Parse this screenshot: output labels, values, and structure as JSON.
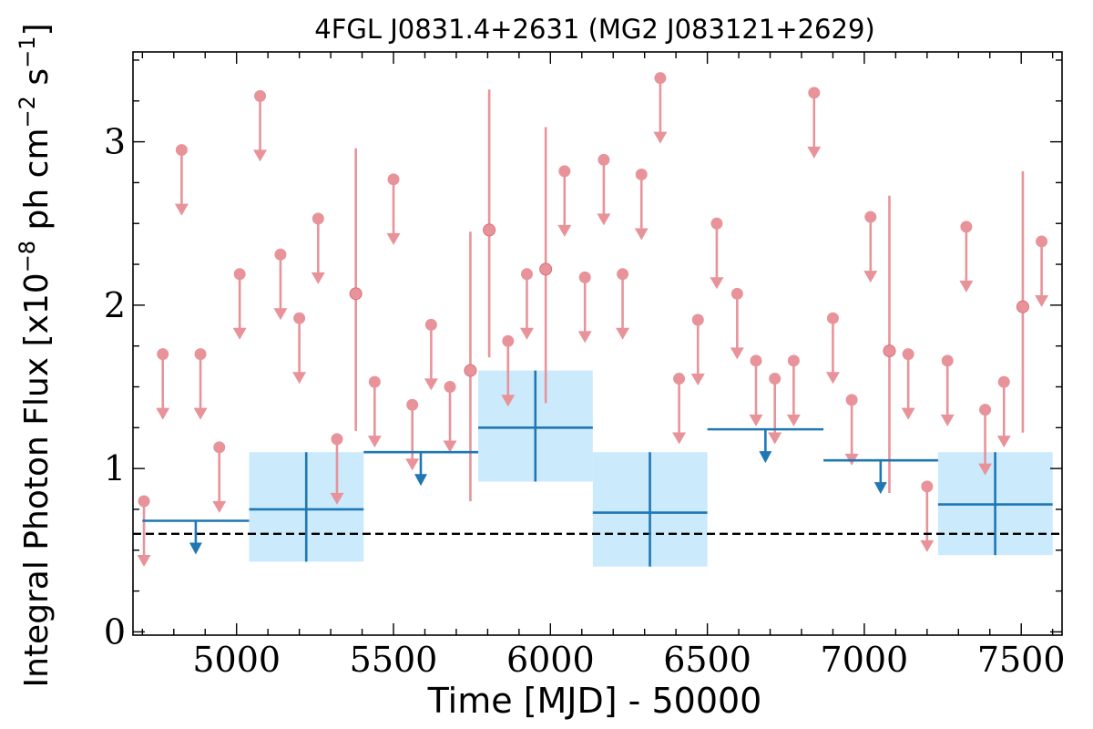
{
  "chart_data": {
    "type": "scatter",
    "title": "4FGL J0831.4+2631 (MG2 J083121+2629)",
    "xlabel": "Time [MJD] - 50000",
    "ylabel_prefix": "Integral Photon Flux [x10",
    "ylabel_exp1": "−8",
    "ylabel_mid": " ph cm",
    "ylabel_exp2": "−2",
    "ylabel_mid2": " s",
    "ylabel_exp3": "−1",
    "ylabel_suffix": "]",
    "xlim": [
      4670,
      7630
    ],
    "ylim": [
      -0.02,
      3.55
    ],
    "xticks": [
      5000,
      5500,
      6000,
      6500,
      7000,
      7500
    ],
    "yticks": [
      0,
      1,
      2,
      3
    ],
    "xtick_labels": [
      "5000",
      "5500",
      "6000",
      "6500",
      "7000",
      "7500"
    ],
    "ytick_labels": [
      "0",
      "1",
      "2",
      "3"
    ],
    "baseline": 0.6,
    "colors": {
      "short_bins": "#e8939a",
      "long_bins": "#1f77b4",
      "long_bin_fill": "#cbeafc",
      "baseline": "#000000"
    },
    "short_bins": [
      {
        "x": 4705,
        "y": 0.8,
        "ul": true
      },
      {
        "x": 4765,
        "y": 1.7,
        "ul": true
      },
      {
        "x": 4825,
        "y": 2.95,
        "ul": true
      },
      {
        "x": 4885,
        "y": 1.7,
        "ul": true
      },
      {
        "x": 4945,
        "y": 1.13,
        "ul": true
      },
      {
        "x": 5010,
        "y": 2.19,
        "ul": true
      },
      {
        "x": 5075,
        "y": 3.28,
        "ul": true
      },
      {
        "x": 5140,
        "y": 2.31,
        "ul": true
      },
      {
        "x": 5200,
        "y": 1.92,
        "ul": true
      },
      {
        "x": 5260,
        "y": 2.53,
        "ul": true
      },
      {
        "x": 5320,
        "y": 1.18,
        "ul": true
      },
      {
        "x": 5380,
        "y": 2.07,
        "ul": false,
        "lo": 1.23,
        "hi": 2.96
      },
      {
        "x": 5440,
        "y": 1.53,
        "ul": true
      },
      {
        "x": 5500,
        "y": 2.77,
        "ul": true
      },
      {
        "x": 5560,
        "y": 1.39,
        "ul": true
      },
      {
        "x": 5620,
        "y": 1.88,
        "ul": true
      },
      {
        "x": 5680,
        "y": 1.5,
        "ul": true
      },
      {
        "x": 5745,
        "y": 1.6,
        "ul": false,
        "lo": 0.8,
        "hi": 2.45
      },
      {
        "x": 5805,
        "y": 2.46,
        "ul": false,
        "lo": 1.68,
        "hi": 3.32
      },
      {
        "x": 5865,
        "y": 1.78,
        "ul": true
      },
      {
        "x": 5925,
        "y": 2.19,
        "ul": true
      },
      {
        "x": 5985,
        "y": 2.22,
        "ul": false,
        "lo": 1.4,
        "hi": 3.09
      },
      {
        "x": 6045,
        "y": 2.82,
        "ul": true
      },
      {
        "x": 6110,
        "y": 2.17,
        "ul": true
      },
      {
        "x": 6170,
        "y": 2.89,
        "ul": true
      },
      {
        "x": 6230,
        "y": 2.19,
        "ul": true
      },
      {
        "x": 6290,
        "y": 2.8,
        "ul": true
      },
      {
        "x": 6350,
        "y": 3.39,
        "ul": true
      },
      {
        "x": 6410,
        "y": 1.55,
        "ul": true
      },
      {
        "x": 6470,
        "y": 1.91,
        "ul": true
      },
      {
        "x": 6530,
        "y": 2.5,
        "ul": true
      },
      {
        "x": 6595,
        "y": 2.07,
        "ul": true
      },
      {
        "x": 6655,
        "y": 1.66,
        "ul": true
      },
      {
        "x": 6715,
        "y": 1.55,
        "ul": true
      },
      {
        "x": 6775,
        "y": 1.66,
        "ul": true
      },
      {
        "x": 6840,
        "y": 3.3,
        "ul": true
      },
      {
        "x": 6900,
        "y": 1.92,
        "ul": true
      },
      {
        "x": 6960,
        "y": 1.42,
        "ul": true
      },
      {
        "x": 7020,
        "y": 2.54,
        "ul": true
      },
      {
        "x": 7080,
        "y": 1.72,
        "ul": false,
        "lo": 0.85,
        "hi": 2.67
      },
      {
        "x": 7140,
        "y": 1.7,
        "ul": true
      },
      {
        "x": 7200,
        "y": 0.89,
        "ul": true
      },
      {
        "x": 7265,
        "y": 1.66,
        "ul": true
      },
      {
        "x": 7325,
        "y": 2.48,
        "ul": true
      },
      {
        "x": 7385,
        "y": 1.36,
        "ul": true
      },
      {
        "x": 7445,
        "y": 1.53,
        "ul": true
      },
      {
        "x": 7505,
        "y": 1.99,
        "ul": false,
        "lo": 1.22,
        "hi": 2.82
      },
      {
        "x": 7565,
        "y": 2.39,
        "ul": true
      }
    ],
    "long_bins": [
      {
        "x0": 4700,
        "x1": 5040,
        "xc": 4870,
        "y": 0.68,
        "ul": true
      },
      {
        "x0": 5040,
        "x1": 5405,
        "xc": 5222,
        "y": 0.75,
        "ul": false,
        "lo": 0.43,
        "hi": 1.1
      },
      {
        "x0": 5405,
        "x1": 5770,
        "xc": 5587,
        "y": 1.1,
        "ul": true
      },
      {
        "x0": 5770,
        "x1": 6135,
        "xc": 5952,
        "y": 1.25,
        "ul": false,
        "lo": 0.92,
        "hi": 1.6
      },
      {
        "x0": 6135,
        "x1": 6500,
        "xc": 6317,
        "y": 0.73,
        "ul": false,
        "lo": 0.4,
        "hi": 1.1
      },
      {
        "x0": 6500,
        "x1": 6870,
        "xc": 6685,
        "y": 1.24,
        "ul": true
      },
      {
        "x0": 6870,
        "x1": 7235,
        "xc": 7052,
        "y": 1.05,
        "ul": true
      },
      {
        "x0": 7235,
        "x1": 7600,
        "xc": 7417,
        "y": 0.78,
        "ul": false,
        "lo": 0.47,
        "hi": 1.1
      }
    ]
  }
}
